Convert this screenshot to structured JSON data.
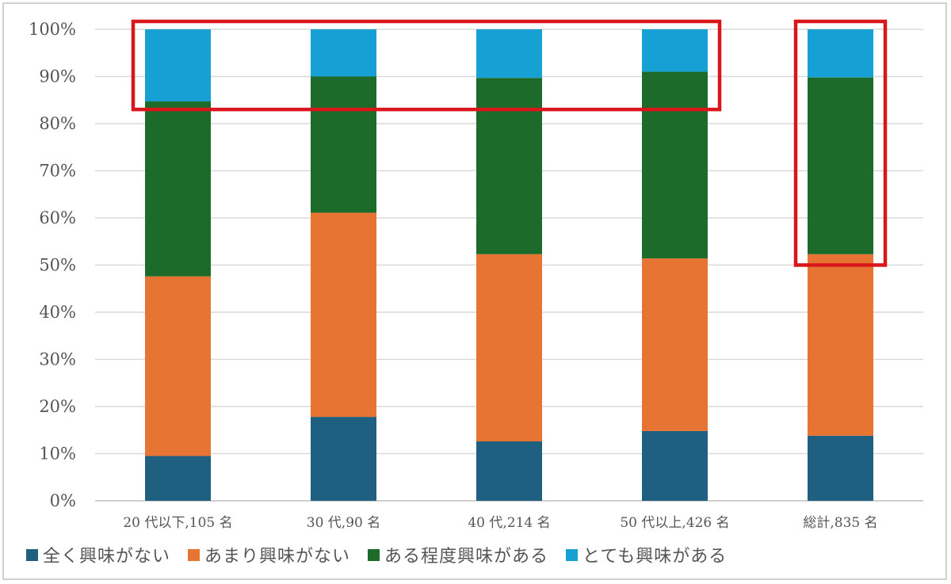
{
  "chart_data": {
    "type": "bar",
    "stacked": true,
    "percent": true,
    "categories": [
      "20 代以下,105 名",
      "30 代,90 名",
      "40 代,214 名",
      "50 代以上,426 名",
      "総計,835 名"
    ],
    "series": [
      {
        "name": "全く興味がない",
        "color": "#1f5f7f",
        "values": [
          9.5,
          17.8,
          12.6,
          14.8,
          13.8
        ]
      },
      {
        "name": "あまり興味がない",
        "color": "#e87434",
        "values": [
          38.1,
          43.3,
          39.7,
          36.6,
          38.5
        ]
      },
      {
        "name": "ある程度興味がある",
        "color": "#1c6b2a",
        "values": [
          37.1,
          28.9,
          37.4,
          39.6,
          37.5
        ]
      },
      {
        "name": "とても興味がある",
        "color": "#17a0d4",
        "values": [
          15.3,
          10.0,
          10.3,
          9.0,
          10.2
        ]
      }
    ],
    "y_ticks": [
      "0%",
      "10%",
      "20%",
      "30%",
      "40%",
      "50%",
      "60%",
      "70%",
      "80%",
      "90%",
      "100%"
    ],
    "ylim": [
      0,
      100
    ],
    "grid": true,
    "legend_position": "bottom-left",
    "highlights": [
      {
        "categories": [
          0,
          3
        ],
        "from": 83,
        "to": 100,
        "color": "#d8161b"
      },
      {
        "categories": [
          4,
          4
        ],
        "from": 50,
        "to": 100,
        "color": "#d8161b"
      }
    ]
  }
}
